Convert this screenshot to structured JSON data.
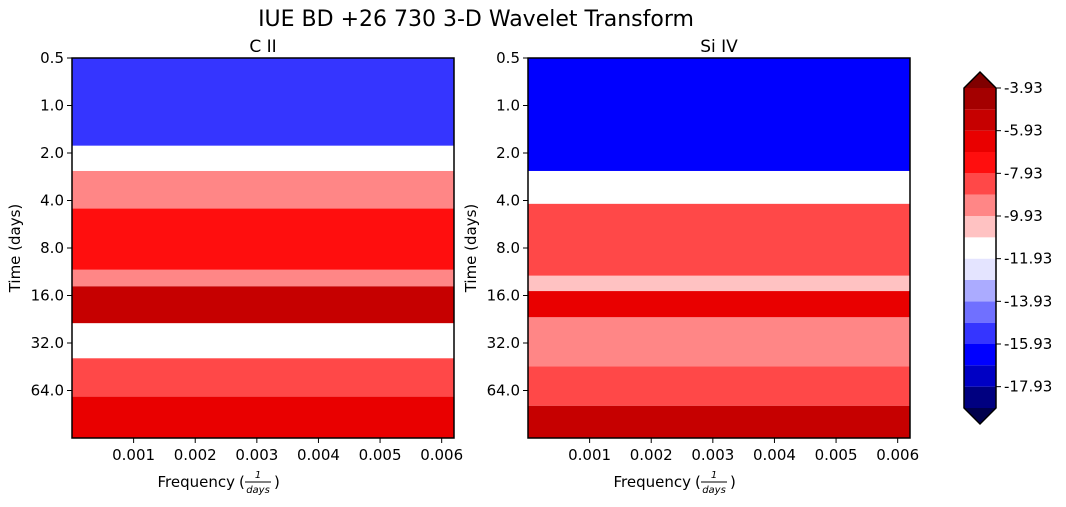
{
  "figure": {
    "title": "IUE BD +26 730 3-D Wavelet Transform"
  },
  "chart_data": [
    {
      "type": "heatmap",
      "title": "C II",
      "xlabel": "Frequency",
      "xlabel_unit_num": "1",
      "xlabel_unit_den": "days",
      "ylabel": "Time (days)",
      "xticks": [
        0.001,
        0.002,
        0.003,
        0.004,
        0.005,
        0.006
      ],
      "xtick_labels": [
        "0.001",
        "0.002",
        "0.003",
        "0.004",
        "0.005",
        "0.006"
      ],
      "xlim": [
        0.0,
        0.0062
      ],
      "yticks": [
        0.5,
        1.0,
        2.0,
        4.0,
        8.0,
        16.0,
        32.0,
        64.0
      ],
      "ytick_labels": [
        "0.5",
        "1.0",
        "2.0",
        "4.0",
        "8.0",
        "16.0",
        "32.0",
        "64.0"
      ],
      "yscale": "log2",
      "ylim": [
        0.5,
        128
      ],
      "y_inverted": false,
      "bands": [
        {
          "t_start": 0.5,
          "t_end": 1.8,
          "level": -15.5
        },
        {
          "t_start": 1.8,
          "t_end": 2.6,
          "level": -11.5
        },
        {
          "t_start": 2.6,
          "t_end": 4.5,
          "level": -9.4
        },
        {
          "t_start": 4.5,
          "t_end": 11,
          "level": -7.5
        },
        {
          "t_start": 11,
          "t_end": 14,
          "level": -9.0
        },
        {
          "t_start": 14,
          "t_end": 24,
          "level": -5.2
        },
        {
          "t_start": 24,
          "t_end": 40,
          "level": -11.0
        },
        {
          "t_start": 40,
          "t_end": 70,
          "level": -8.6
        },
        {
          "t_start": 70,
          "t_end": 128,
          "level": -6.0
        }
      ]
    },
    {
      "type": "heatmap",
      "title": "Si IV",
      "xlabel": "Frequency",
      "xlabel_unit_num": "1",
      "xlabel_unit_den": "days",
      "ylabel": "Time (days)",
      "xticks": [
        0.001,
        0.002,
        0.003,
        0.004,
        0.005,
        0.006
      ],
      "xtick_labels": [
        "0.001",
        "0.002",
        "0.003",
        "0.004",
        "0.005",
        "0.006"
      ],
      "xlim": [
        0.0,
        0.0062
      ],
      "yticks": [
        0.5,
        1.0,
        2.0,
        4.0,
        8.0,
        16.0,
        32.0,
        64.0
      ],
      "ytick_labels": [
        "0.5",
        "1.0",
        "2.0",
        "4.0",
        "8.0",
        "16.0",
        "32.0",
        "64.0"
      ],
      "yscale": "log2",
      "ylim": [
        0.5,
        128
      ],
      "y_inverted": false,
      "bands": [
        {
          "t_start": 0.5,
          "t_end": 2.6,
          "level": -16.0
        },
        {
          "t_start": 2.6,
          "t_end": 4.2,
          "level": -11.0
        },
        {
          "t_start": 4.2,
          "t_end": 12,
          "level": -8.5
        },
        {
          "t_start": 12,
          "t_end": 15,
          "level": -10.0
        },
        {
          "t_start": 15,
          "t_end": 22,
          "level": -6.8
        },
        {
          "t_start": 22,
          "t_end": 45,
          "level": -9.8
        },
        {
          "t_start": 45,
          "t_end": 80,
          "level": -8.0
        },
        {
          "t_start": 80,
          "t_end": 128,
          "level": -5.0
        }
      ]
    }
  ],
  "colorbar": {
    "levels": [
      -18.93,
      -17.93,
      -16.93,
      -15.93,
      -14.93,
      -13.93,
      -12.93,
      -11.93,
      -10.93,
      -9.93,
      -8.93,
      -7.93,
      -6.93,
      -5.93,
      -4.93,
      -3.93
    ],
    "tick_labels": [
      "-3.93",
      "-5.93",
      "-7.93",
      "-9.93",
      "-11.93",
      "-13.93",
      "-15.93",
      "-17.93"
    ],
    "tick_values": [
      -3.93,
      -5.93,
      -7.93,
      -9.93,
      -11.93,
      -13.93,
      -15.93,
      -17.93
    ],
    "extend": "both",
    "colors": [
      "#00004c",
      "#000080",
      "#0000c4",
      "#0000ff",
      "#3535ff",
      "#7070ff",
      "#ababff",
      "#e4e4ff",
      "#ffffff",
      "#ffc2c2",
      "#ff8686",
      "#ff4848",
      "#ff0e0e",
      "#e90000",
      "#c60000",
      "#a40000",
      "#800000"
    ]
  }
}
